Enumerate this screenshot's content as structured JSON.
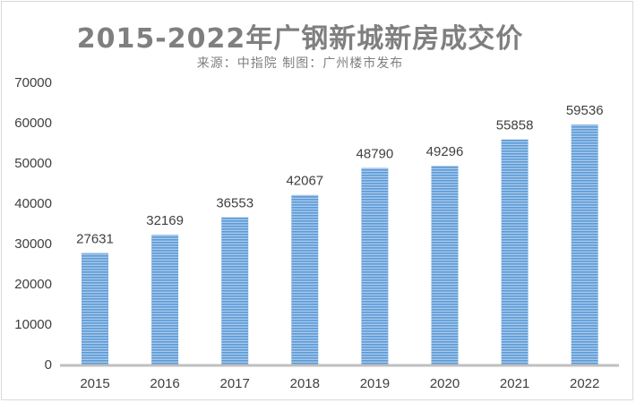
{
  "title": "2015-2022年广钢新城新房成交价",
  "subtitle": "来源：中指院 制图：广州楼市发布",
  "chart_data": {
    "type": "bar",
    "title": "2015-2022年广钢新城新房成交价",
    "subtitle": "来源：中指院 制图：广州楼市发布",
    "categories": [
      "2015",
      "2016",
      "2017",
      "2018",
      "2019",
      "2020",
      "2021",
      "2022"
    ],
    "values": [
      27631,
      32169,
      36553,
      42067,
      48790,
      49296,
      55858,
      59536
    ],
    "data_labels": [
      "27631",
      "32169",
      "36553",
      "42067",
      "48790",
      "49296",
      "55858",
      "59536"
    ],
    "ylim": [
      0,
      70000
    ],
    "yticks": [
      "0",
      "10000",
      "20000",
      "30000",
      "40000",
      "50000",
      "60000",
      "70000"
    ],
    "xlabel": "",
    "ylabel": "",
    "grid": false,
    "legend": "none",
    "colors": {
      "bar": "#5b9bd5",
      "bar_stripe": "#a9c8ec",
      "axis": "#bfbfbf",
      "title": "#7f7f7f"
    }
  }
}
